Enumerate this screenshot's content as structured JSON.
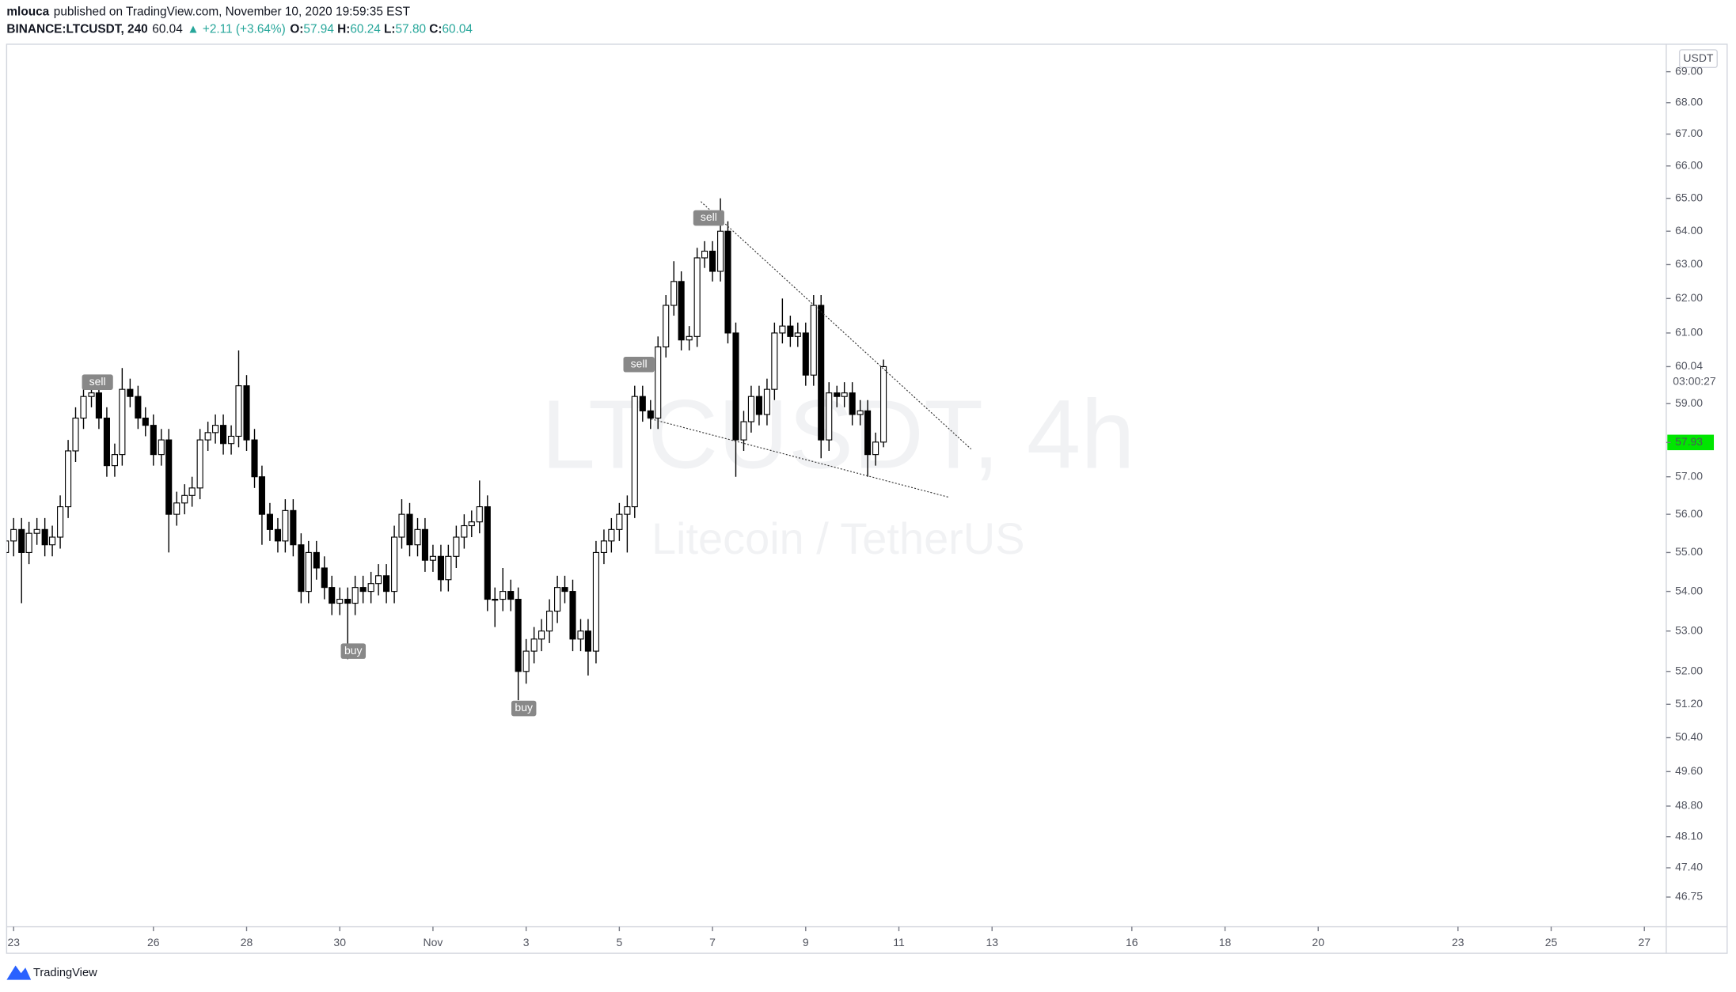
{
  "chart_data": {
    "type": "candlestick",
    "header": {
      "author": "mlouca",
      "published": "published on TradingView.com, November 10, 2020 19:59:35 EST",
      "symbol": "BINANCE:LTCUSDT, 240",
      "last": "60.04",
      "change": "▲ +2.11 (+3.64%)",
      "o_label": "O:",
      "o": "57.94",
      "h_label": "H:",
      "h": "60.24",
      "l_label": "L:",
      "l": "57.80",
      "c_label": "C:",
      "c": "60.04"
    },
    "watermark": {
      "title": "LTCUSDT, 4h",
      "subtitle": "Litecoin / TetherUS"
    },
    "currency": "USDT",
    "footer": "TradingView",
    "log_scale": true,
    "up_color": "#ffffff",
    "down_color": "#000000",
    "outline_color": "#000000",
    "xlim": [
      -0.15,
      35.47
    ],
    "xticks": [
      {
        "value": 0,
        "label": "23"
      },
      {
        "value": 3,
        "label": "26"
      },
      {
        "value": 5,
        "label": "28"
      },
      {
        "value": 7,
        "label": "30"
      },
      {
        "value": 9,
        "label": "Nov"
      },
      {
        "value": 11,
        "label": "3"
      },
      {
        "value": 13,
        "label": "5"
      },
      {
        "value": 15,
        "label": "7"
      },
      {
        "value": 17,
        "label": "9"
      },
      {
        "value": 19,
        "label": "11"
      },
      {
        "value": 21,
        "label": "13"
      },
      {
        "value": 24,
        "label": "16"
      },
      {
        "value": 26,
        "label": "18"
      },
      {
        "value": 28,
        "label": "20"
      },
      {
        "value": 31,
        "label": "23"
      },
      {
        "value": 33,
        "label": "25"
      },
      {
        "value": 35,
        "label": "27"
      }
    ],
    "ylim": [
      46.1,
      69.9
    ],
    "yticks": [
      {
        "value": 46.75,
        "label": "46.75"
      },
      {
        "value": 47.4,
        "label": "47.40"
      },
      {
        "value": 48.1,
        "label": "48.10"
      },
      {
        "value": 48.8,
        "label": "48.80"
      },
      {
        "value": 49.6,
        "label": "49.60"
      },
      {
        "value": 50.4,
        "label": "50.40"
      },
      {
        "value": 51.2,
        "label": "51.20"
      },
      {
        "value": 52,
        "label": "52.00"
      },
      {
        "value": 53,
        "label": "53.00"
      },
      {
        "value": 54,
        "label": "54.00"
      },
      {
        "value": 55,
        "label": "55.00"
      },
      {
        "value": 56,
        "label": "56.00"
      },
      {
        "value": 57,
        "label": "57.00"
      },
      {
        "value": 59,
        "label": "59.00"
      },
      {
        "value": 61,
        "label": "61.00"
      },
      {
        "value": 62,
        "label": "62.00"
      },
      {
        "value": 63,
        "label": "63.00"
      },
      {
        "value": 64,
        "label": "64.00"
      },
      {
        "value": 65,
        "label": "65.00"
      },
      {
        "value": 66,
        "label": "66.00"
      },
      {
        "value": 67,
        "label": "67.00"
      },
      {
        "value": 68,
        "label": "68.00"
      },
      {
        "value": 69,
        "label": "69.00"
      }
    ],
    "price_labels": [
      {
        "value": 60.04,
        "color": "#ffffff",
        "text_color": "#131722"
      },
      {
        "value": 57.93,
        "color": "#00e600",
        "text_color": "#131722"
      }
    ],
    "countdown": "03:00:27",
    "x": [
      -0.17,
      0,
      0.17,
      0.33,
      0.5,
      0.67,
      0.83,
      1,
      1.17,
      1.33,
      1.5,
      1.67,
      1.83,
      2,
      2.17,
      2.33,
      2.5,
      2.67,
      2.83,
      3,
      3.17,
      3.33,
      3.5,
      3.67,
      3.83,
      4,
      4.17,
      4.33,
      4.5,
      4.67,
      4.83,
      5,
      5.17,
      5.33,
      5.5,
      5.67,
      5.83,
      6,
      6.17,
      6.33,
      6.5,
      6.67,
      6.83,
      7,
      7.17,
      7.33,
      7.5,
      7.67,
      7.83,
      8,
      8.17,
      8.33,
      8.5,
      8.67,
      8.83,
      9,
      9.17,
      9.33,
      9.5,
      9.67,
      9.83,
      10,
      10.17,
      10.33,
      10.5,
      10.67,
      10.83,
      11,
      11.17,
      11.33,
      11.5,
      11.67,
      11.83,
      12,
      12.17,
      12.33,
      12.5,
      12.67,
      12.83,
      13,
      13.17,
      13.33,
      13.5,
      13.67,
      13.83,
      14,
      14.17,
      14.33,
      14.5,
      14.67,
      14.83,
      15,
      15.17,
      15.33,
      15.5,
      15.67,
      15.83,
      16,
      16.17,
      16.33,
      16.5,
      16.67,
      16.83,
      17,
      17.17,
      17.33,
      17.5,
      17.67,
      17.83,
      18,
      18.17,
      18.33,
      18.5,
      18.67
    ],
    "candles": [
      [
        55.0,
        57.0,
        54.6,
        55.3
      ],
      [
        55.3,
        55.9,
        54.9,
        55.6
      ],
      [
        55.6,
        55.9,
        53.7,
        55.0
      ],
      [
        55.0,
        55.8,
        54.7,
        55.5
      ],
      [
        55.5,
        55.9,
        55.2,
        55.6
      ],
      [
        55.6,
        55.9,
        54.9,
        55.2
      ],
      [
        55.2,
        55.7,
        54.9,
        55.4
      ],
      [
        55.4,
        56.5,
        55.1,
        56.2
      ],
      [
        56.2,
        58.0,
        55.9,
        57.7
      ],
      [
        57.7,
        58.9,
        57.4,
        58.6
      ],
      [
        58.6,
        59.5,
        58.3,
        59.2
      ],
      [
        59.2,
        59.7,
        58.9,
        59.3
      ],
      [
        59.3,
        59.6,
        58.3,
        58.6
      ],
      [
        58.6,
        58.9,
        57.0,
        57.3
      ],
      [
        57.3,
        57.9,
        57.0,
        57.6
      ],
      [
        57.6,
        60.0,
        57.3,
        59.4
      ],
      [
        59.4,
        59.7,
        58.9,
        59.2
      ],
      [
        59.2,
        59.5,
        58.3,
        58.6
      ],
      [
        58.6,
        58.9,
        58.1,
        58.4
      ],
      [
        58.4,
        58.7,
        57.3,
        57.6
      ],
      [
        57.6,
        58.3,
        57.3,
        58.0
      ],
      [
        58.0,
        58.3,
        55.0,
        56.0
      ],
      [
        56.0,
        56.6,
        55.7,
        56.3
      ],
      [
        56.3,
        56.8,
        56.0,
        56.5
      ],
      [
        56.5,
        57.0,
        56.2,
        56.7
      ],
      [
        56.7,
        58.3,
        56.4,
        58.0
      ],
      [
        58.0,
        58.5,
        57.7,
        58.2
      ],
      [
        58.2,
        58.7,
        57.9,
        58.4
      ],
      [
        58.4,
        58.7,
        57.6,
        57.9
      ],
      [
        57.9,
        58.4,
        57.6,
        58.1
      ],
      [
        58.1,
        60.5,
        57.8,
        59.5
      ],
      [
        59.5,
        59.8,
        57.7,
        58.0
      ],
      [
        58.0,
        58.3,
        56.7,
        57.0
      ],
      [
        57.0,
        57.3,
        55.2,
        56.0
      ],
      [
        56.0,
        56.3,
        55.3,
        55.6
      ],
      [
        55.6,
        55.9,
        55.0,
        55.3
      ],
      [
        55.3,
        56.4,
        55.0,
        56.1
      ],
      [
        56.1,
        56.4,
        54.9,
        55.2
      ],
      [
        55.2,
        55.5,
        53.7,
        54.0
      ],
      [
        54.0,
        55.3,
        53.7,
        55.0
      ],
      [
        55.0,
        55.3,
        54.3,
        54.6
      ],
      [
        54.6,
        54.9,
        53.8,
        54.1
      ],
      [
        54.1,
        54.4,
        53.4,
        53.7
      ],
      [
        53.7,
        54.1,
        53.4,
        53.8
      ],
      [
        53.8,
        54.1,
        52.3,
        53.7
      ],
      [
        53.7,
        54.4,
        53.4,
        54.1
      ],
      [
        54.1,
        54.4,
        53.7,
        54.0
      ],
      [
        54.0,
        54.5,
        53.7,
        54.2
      ],
      [
        54.2,
        54.7,
        53.9,
        54.4
      ],
      [
        54.4,
        54.7,
        53.7,
        54.0
      ],
      [
        54.0,
        55.7,
        53.7,
        55.4
      ],
      [
        55.4,
        56.4,
        55.1,
        56.0
      ],
      [
        56.0,
        56.3,
        54.9,
        55.2
      ],
      [
        55.2,
        55.9,
        54.9,
        55.6
      ],
      [
        55.6,
        55.9,
        54.5,
        54.8
      ],
      [
        54.8,
        55.2,
        54.5,
        54.9
      ],
      [
        54.9,
        55.2,
        54.0,
        54.3
      ],
      [
        54.3,
        55.2,
        54.0,
        54.9
      ],
      [
        54.9,
        55.7,
        54.6,
        55.4
      ],
      [
        55.4,
        56.0,
        55.1,
        55.7
      ],
      [
        55.7,
        56.1,
        55.4,
        55.8
      ],
      [
        55.8,
        56.9,
        55.5,
        56.2
      ],
      [
        56.2,
        56.5,
        53.5,
        53.8
      ],
      [
        53.8,
        54.1,
        53.1,
        53.8
      ],
      [
        53.8,
        54.6,
        53.5,
        54.0
      ],
      [
        54.0,
        54.3,
        53.5,
        53.8
      ],
      [
        53.8,
        54.1,
        51.3,
        52.0
      ],
      [
        52.0,
        52.8,
        51.7,
        52.5
      ],
      [
        52.5,
        53.1,
        52.2,
        52.8
      ],
      [
        52.8,
        53.3,
        52.5,
        53.0
      ],
      [
        53.0,
        53.8,
        52.7,
        53.5
      ],
      [
        53.5,
        54.4,
        53.2,
        54.1
      ],
      [
        54.1,
        54.4,
        53.7,
        54.0
      ],
      [
        54.0,
        54.3,
        52.5,
        52.8
      ],
      [
        52.8,
        53.3,
        52.5,
        53.0
      ],
      [
        53.0,
        53.3,
        51.9,
        52.5
      ],
      [
        52.5,
        55.3,
        52.2,
        55.0
      ],
      [
        55.0,
        55.6,
        54.7,
        55.3
      ],
      [
        55.3,
        55.9,
        55.0,
        55.6
      ],
      [
        55.6,
        56.3,
        55.3,
        56.0
      ],
      [
        56.0,
        56.5,
        55.0,
        56.2
      ],
      [
        56.2,
        59.5,
        55.9,
        59.2
      ],
      [
        59.2,
        59.5,
        58.5,
        58.8
      ],
      [
        58.8,
        59.1,
        58.3,
        58.6
      ],
      [
        58.6,
        60.9,
        58.3,
        60.6
      ],
      [
        60.6,
        62.1,
        60.3,
        61.8
      ],
      [
        61.8,
        63.1,
        61.5,
        62.5
      ],
      [
        62.5,
        62.8,
        60.5,
        60.8
      ],
      [
        60.8,
        61.2,
        60.5,
        60.9
      ],
      [
        60.9,
        63.5,
        60.6,
        63.2
      ],
      [
        63.2,
        63.7,
        62.9,
        63.4
      ],
      [
        63.4,
        63.7,
        62.5,
        62.8
      ],
      [
        62.8,
        65.0,
        62.5,
        64.0
      ],
      [
        64.0,
        64.3,
        60.7,
        61.0
      ],
      [
        61.0,
        61.3,
        57.0,
        58.0
      ],
      [
        58.0,
        58.8,
        57.7,
        58.5
      ],
      [
        58.5,
        59.5,
        58.2,
        59.2
      ],
      [
        59.2,
        59.5,
        58.4,
        58.7
      ],
      [
        58.7,
        59.7,
        58.4,
        59.4
      ],
      [
        59.4,
        61.3,
        59.1,
        61.0
      ],
      [
        61.0,
        62.0,
        60.7,
        61.2
      ],
      [
        61.2,
        61.5,
        60.6,
        60.9
      ],
      [
        60.9,
        61.3,
        60.6,
        61.0
      ],
      [
        61.0,
        61.3,
        59.5,
        59.8
      ],
      [
        59.8,
        62.1,
        59.5,
        61.8
      ],
      [
        61.8,
        62.1,
        57.5,
        58.0
      ],
      [
        58.0,
        59.6,
        57.7,
        59.3
      ],
      [
        59.3,
        59.5,
        58.9,
        59.2
      ],
      [
        59.2,
        59.6,
        58.9,
        59.3
      ],
      [
        59.3,
        59.6,
        58.4,
        58.7
      ],
      [
        58.7,
        59.1,
        58.4,
        58.8
      ],
      [
        58.8,
        59.1,
        57.0,
        57.6
      ],
      [
        57.6,
        58.2,
        57.3,
        57.94
      ],
      [
        57.94,
        60.24,
        57.8,
        60.04
      ]
    ],
    "trendlines": [
      {
        "x": [
          14.75,
          20.55
        ],
        "y": [
          64.9,
          57.75
        ]
      },
      {
        "x": [
          13.61,
          20.08
        ],
        "y": [
          58.6,
          56.45
        ]
      }
    ],
    "annotations": [
      {
        "text": "sell",
        "x": 1.8,
        "y": 59.6
      },
      {
        "text": "sell",
        "x": 13.42,
        "y": 60.1
      },
      {
        "text": "sell",
        "x": 14.92,
        "y": 64.4
      },
      {
        "text": "buy",
        "x": 7.29,
        "y": 52.5
      },
      {
        "text": "buy",
        "x": 10.95,
        "y": 51.1
      }
    ]
  }
}
